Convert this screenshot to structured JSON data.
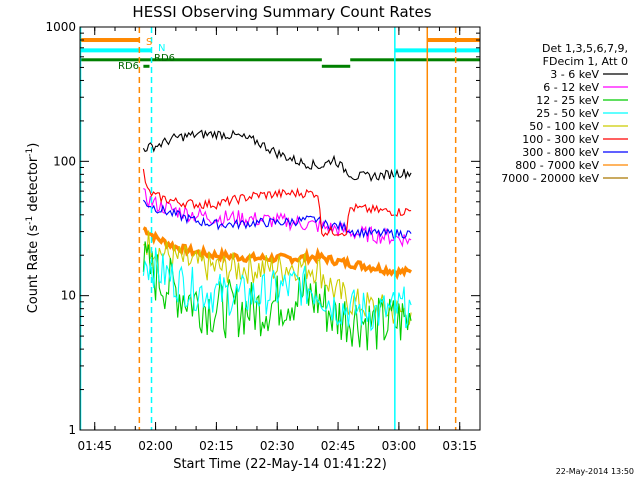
{
  "chart_data": {
    "type": "line",
    "title": "HESSI Observing Summary Count Rates",
    "xlabel": "Start Time (22-May-14 01:41:22)",
    "ylabel": "Count Rate (s⁻¹ detector⁻¹)",
    "ylabel_parts": {
      "pre": "Count Rate (s",
      "exp1": "-1",
      "mid": " detector",
      "exp2": "-1",
      "post": ")"
    },
    "yscale": "log",
    "ylim": [
      1,
      1000
    ],
    "xlim": [
      "01:41:22",
      "03:20:00"
    ],
    "x_ticks": [
      "01:45",
      "02:00",
      "02:15",
      "02:30",
      "02:45",
      "03:00",
      "03:15"
    ],
    "y_ticks": [
      "1",
      "10",
      "100",
      "1000"
    ],
    "grid": false,
    "legend_position": "right, outside plot",
    "legend_header": [
      "Det 1,3,5,6,7,9,",
      "FDecim 1, Att 0"
    ],
    "series": [
      {
        "name": "3 - 6 keV",
        "color": "#000000",
        "points": [
          [
            "01:57",
            125
          ],
          [
            "02:00",
            130
          ],
          [
            "02:05",
            150
          ],
          [
            "02:10",
            158
          ],
          [
            "02:15",
            160
          ],
          [
            "02:20",
            155
          ],
          [
            "02:25",
            140
          ],
          [
            "02:30",
            115
          ],
          [
            "02:35",
            100
          ],
          [
            "02:38",
            95
          ],
          [
            "02:41",
            92
          ],
          [
            "02:44",
            105
          ],
          [
            "02:46",
            90
          ],
          [
            "02:49",
            77
          ],
          [
            "02:55",
            78
          ],
          [
            "03:00",
            82
          ],
          [
            "03:03",
            82
          ]
        ]
      },
      {
        "name": "6 - 12 keV",
        "color": "#ff00ff",
        "points": [
          [
            "01:57",
            55
          ],
          [
            "02:00",
            48
          ],
          [
            "02:05",
            43
          ],
          [
            "02:10",
            40
          ],
          [
            "02:15",
            38
          ],
          [
            "02:20",
            38
          ],
          [
            "02:25",
            37
          ],
          [
            "02:30",
            36
          ],
          [
            "02:35",
            35
          ],
          [
            "02:40",
            33
          ],
          [
            "02:45",
            31
          ],
          [
            "02:50",
            29
          ],
          [
            "02:55",
            28
          ],
          [
            "03:00",
            27
          ],
          [
            "03:03",
            26
          ]
        ]
      },
      {
        "name": "12 - 25 keV",
        "color": "#00cc00",
        "points": [
          [
            "01:57",
            17
          ],
          [
            "02:00",
            14
          ],
          [
            "02:05",
            11
          ],
          [
            "02:10",
            9
          ],
          [
            "02:15",
            8
          ],
          [
            "02:20",
            8
          ],
          [
            "02:25",
            8
          ],
          [
            "02:30",
            9
          ],
          [
            "02:35",
            10
          ],
          [
            "02:40",
            9.5
          ],
          [
            "02:44",
            7
          ],
          [
            "02:48",
            7
          ],
          [
            "02:55",
            6
          ],
          [
            "03:00",
            6.5
          ],
          [
            "03:03",
            6.5
          ]
        ]
      },
      {
        "name": "25 - 50 keV",
        "color": "#00ffff",
        "points": [
          [
            "01:57",
            19
          ],
          [
            "02:00",
            16
          ],
          [
            "02:05",
            13
          ],
          [
            "02:10",
            11
          ],
          [
            "02:15",
            10.5
          ],
          [
            "02:20",
            10
          ],
          [
            "02:25",
            10
          ],
          [
            "02:30",
            11
          ],
          [
            "02:35",
            12
          ],
          [
            "02:40",
            11
          ],
          [
            "02:44",
            8.5
          ],
          [
            "02:48",
            8
          ],
          [
            "02:55",
            7.5
          ],
          [
            "03:00",
            8
          ],
          [
            "03:03",
            8.5
          ]
        ]
      },
      {
        "name": "50 - 100 keV",
        "color": "#cccc00",
        "points": [
          [
            "01:57",
            27
          ],
          [
            "02:00",
            22
          ],
          [
            "02:05",
            19
          ],
          [
            "02:10",
            17
          ],
          [
            "02:15",
            16
          ],
          [
            "02:20",
            16
          ],
          [
            "02:25",
            16
          ],
          [
            "02:30",
            16
          ],
          [
            "02:35",
            17
          ],
          [
            "02:40",
            16
          ],
          [
            "02:44",
            11
          ],
          [
            "02:48",
            9
          ],
          [
            "02:55",
            8
          ],
          [
            "03:00",
            7.5
          ],
          [
            "03:03",
            7.5
          ]
        ]
      },
      {
        "name": "100 - 300 keV",
        "color": "#ff0000",
        "points": [
          [
            "01:57",
            85
          ],
          [
            "01:58",
            60
          ],
          [
            "02:00",
            55
          ],
          [
            "02:05",
            50
          ],
          [
            "02:10",
            48
          ],
          [
            "02:15",
            48
          ],
          [
            "02:20",
            52
          ],
          [
            "02:25",
            56
          ],
          [
            "02:30",
            57
          ],
          [
            "02:35",
            58
          ],
          [
            "02:40",
            58
          ],
          [
            "02:41",
            30
          ],
          [
            "02:45",
            30
          ],
          [
            "02:47",
            30
          ],
          [
            "02:48",
            45
          ],
          [
            "02:55",
            43
          ],
          [
            "03:00",
            42
          ],
          [
            "03:03",
            43
          ]
        ]
      },
      {
        "name": "300 - 800 keV",
        "color": "#0000ff",
        "points": [
          [
            "01:57",
            50
          ],
          [
            "02:00",
            45
          ],
          [
            "02:05",
            40
          ],
          [
            "02:10",
            36
          ],
          [
            "02:15",
            34
          ],
          [
            "02:20",
            34
          ],
          [
            "02:25",
            35
          ],
          [
            "02:30",
            35
          ],
          [
            "02:35",
            36
          ],
          [
            "02:40",
            37
          ],
          [
            "02:41",
            34
          ],
          [
            "02:45",
            33
          ],
          [
            "02:47",
            32
          ],
          [
            "02:49",
            30
          ],
          [
            "02:55",
            29
          ],
          [
            "03:00",
            29
          ],
          [
            "03:03",
            29
          ]
        ]
      },
      {
        "name": "800 - 7000 keV",
        "color": "#ff8800",
        "points": [
          [
            "01:57",
            32
          ],
          [
            "02:00",
            27
          ],
          [
            "02:05",
            23
          ],
          [
            "02:10",
            21
          ],
          [
            "02:15",
            20
          ],
          [
            "02:20",
            19.5
          ],
          [
            "02:25",
            19
          ],
          [
            "02:30",
            19
          ],
          [
            "02:35",
            19
          ],
          [
            "02:40",
            19.5
          ],
          [
            "02:45",
            18
          ],
          [
            "02:50",
            17
          ],
          [
            "02:55",
            16
          ],
          [
            "03:00",
            15
          ],
          [
            "03:03",
            15
          ]
        ]
      },
      {
        "name": "7000 - 20000 keV",
        "color": "#aa7700",
        "points": []
      }
    ],
    "annotations": [
      {
        "text": "S",
        "color": "#ff8800"
      },
      {
        "text": "N",
        "color": "#00ffff"
      },
      {
        "text": "RD6",
        "color": "#006600"
      },
      {
        "text": "RD6",
        "color": "#006600"
      }
    ],
    "vertical_markers": [
      {
        "x": "01:41:30",
        "color": "#00ffff",
        "style": "solid"
      },
      {
        "x": "01:56",
        "color": "#ff8800",
        "style": "dashed"
      },
      {
        "x": "01:59",
        "color": "#00ffff",
        "style": "dashed"
      },
      {
        "x": "02:59",
        "color": "#00ffff",
        "style": "solid"
      },
      {
        "x": "03:07",
        "color": "#ff8800",
        "style": "solid"
      },
      {
        "x": "03:14",
        "color": "#ff8800",
        "style": "dashed"
      }
    ]
  },
  "timestamp": "22-May-2014 13:50"
}
